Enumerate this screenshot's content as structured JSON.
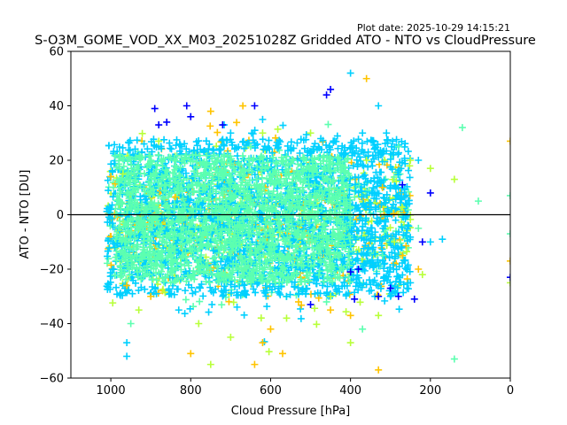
{
  "chart_data": {
    "type": "scatter",
    "title": "S-O3M_GOME_VOD_XX_M03_20251028Z Gridded ATO - NTO vs CloudPressure",
    "subtitle": "Plot date: 2025-10-29 14:15:21",
    "xlabel": "Cloud Pressure [hPa]",
    "ylabel": "ATO - NTO [DU]",
    "xlim": [
      1100,
      0
    ],
    "ylim": [
      -60,
      60
    ],
    "x_ticks": [
      1000,
      800,
      600,
      400,
      200,
      0
    ],
    "y_ticks": [
      -60,
      -40,
      -20,
      0,
      20,
      40,
      60
    ],
    "reference_line_y": 0,
    "marker": "+",
    "grid": false,
    "series": [
      {
        "color": "#00d0ff",
        "points": [
          [
            1000,
            2
          ],
          [
            990,
            -12
          ],
          [
            960,
            -52
          ],
          [
            960,
            -47
          ],
          [
            880,
            25
          ],
          [
            830,
            -35
          ],
          [
            700,
            30
          ],
          [
            620,
            35
          ],
          [
            560,
            -30
          ],
          [
            480,
            25
          ],
          [
            430,
            -27
          ],
          [
            400,
            52
          ],
          [
            370,
            30
          ],
          [
            330,
            40
          ],
          [
            310,
            30
          ],
          [
            300,
            -30
          ],
          [
            280,
            10
          ],
          [
            250,
            -25
          ],
          [
            230,
            20
          ],
          [
            200,
            -10
          ],
          [
            170,
            -9
          ]
        ]
      },
      {
        "color": "#5cffb0",
        "points": [
          [
            980,
            10
          ],
          [
            950,
            -40
          ],
          [
            900,
            20
          ],
          [
            850,
            -25
          ],
          [
            780,
            5
          ],
          [
            700,
            -15
          ],
          [
            650,
            25
          ],
          [
            600,
            -20
          ],
          [
            520,
            10
          ],
          [
            460,
            -32
          ],
          [
            420,
            18
          ],
          [
            370,
            -42
          ],
          [
            320,
            -15
          ],
          [
            280,
            25
          ],
          [
            230,
            -5
          ],
          [
            140,
            -53
          ],
          [
            120,
            32
          ],
          [
            80,
            5
          ],
          [
            0,
            -7
          ],
          [
            0,
            7
          ]
        ]
      },
      {
        "color": "#b8ff3a",
        "points": [
          [
            970,
            15
          ],
          [
            930,
            -35
          ],
          [
            880,
            27
          ],
          [
            780,
            -40
          ],
          [
            750,
            -55
          ],
          [
            700,
            -45
          ],
          [
            620,
            30
          ],
          [
            560,
            -38
          ],
          [
            500,
            30
          ],
          [
            450,
            -30
          ],
          [
            400,
            -47
          ],
          [
            360,
            20
          ],
          [
            330,
            -37
          ],
          [
            290,
            -10
          ],
          [
            250,
            20
          ],
          [
            220,
            -22
          ],
          [
            200,
            17
          ],
          [
            140,
            13
          ],
          [
            0,
            -25
          ]
        ]
      },
      {
        "color": "#ffc400",
        "points": [
          [
            1000,
            14
          ],
          [
            960,
            -26
          ],
          [
            900,
            -30
          ],
          [
            800,
            -51
          ],
          [
            750,
            38
          ],
          [
            640,
            -55
          ],
          [
            620,
            -47
          ],
          [
            600,
            -42
          ],
          [
            570,
            -51
          ],
          [
            530,
            -32
          ],
          [
            450,
            -35
          ],
          [
            400,
            -37
          ],
          [
            360,
            50
          ],
          [
            330,
            -57
          ],
          [
            320,
            10
          ],
          [
            270,
            -15
          ],
          [
            230,
            -20
          ],
          [
            0,
            27
          ],
          [
            0,
            -17
          ]
        ]
      },
      {
        "color": "#0000ff",
        "points": [
          [
            890,
            39
          ],
          [
            880,
            33
          ],
          [
            860,
            34
          ],
          [
            810,
            40
          ],
          [
            800,
            36
          ],
          [
            720,
            33
          ],
          [
            640,
            40
          ],
          [
            500,
            -33
          ],
          [
            460,
            44
          ],
          [
            450,
            46
          ],
          [
            400,
            -21
          ],
          [
            390,
            -31
          ],
          [
            380,
            -20
          ],
          [
            330,
            -30
          ],
          [
            300,
            -27
          ],
          [
            280,
            -30
          ],
          [
            270,
            11
          ],
          [
            240,
            -31
          ],
          [
            220,
            -10
          ],
          [
            200,
            8
          ],
          [
            0,
            -23
          ]
        ]
      }
    ],
    "cloud": [
      {
        "color": "#00d0ff",
        "xmin": 250,
        "xmax": 1010,
        "ymin": -30,
        "ymax": 28
      },
      {
        "color": "#5cffb0",
        "xmin": 400,
        "xmax": 990,
        "ymin": -25,
        "ymax": 22
      }
    ]
  }
}
